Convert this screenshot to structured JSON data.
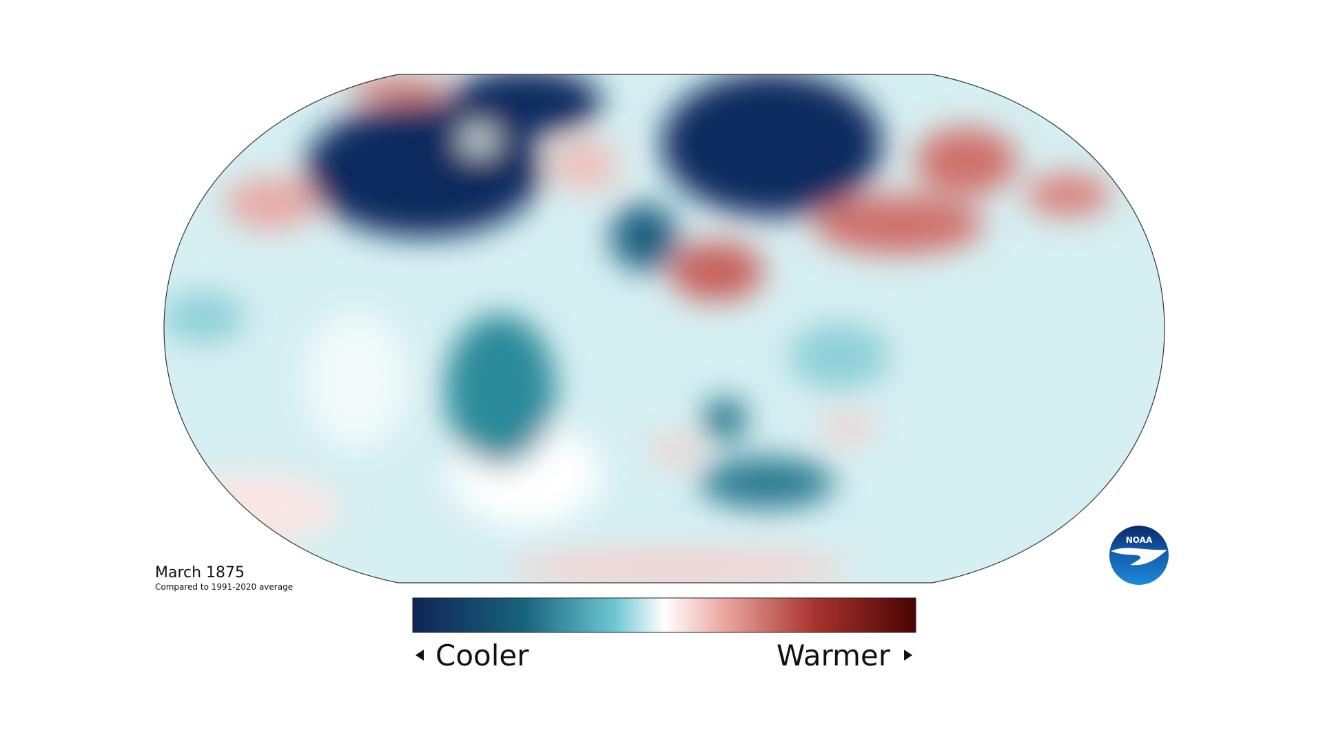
{
  "title": "March 1875",
  "subtitle": "Compared to 1991-2020 average",
  "legend": {
    "low": "Cooler",
    "high": "Warmer"
  },
  "logo": "NOAA"
}
